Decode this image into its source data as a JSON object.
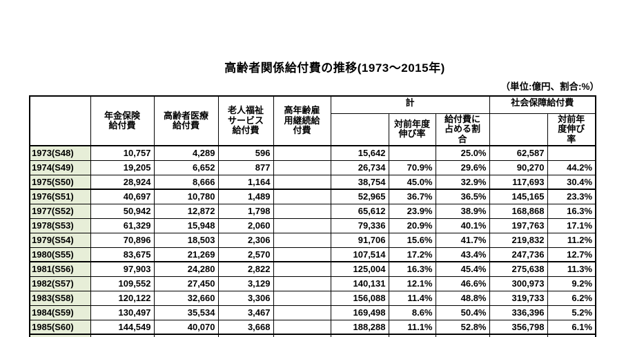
{
  "title": "高齢者関係給付費の推移(1973～2015年)",
  "unit_note": "（単位:億円、割合:%）",
  "colors": {
    "year_cell_bg": "#e7eed8",
    "border": "#000000",
    "text": "#000000"
  },
  "table": {
    "headers": {
      "year_col": "",
      "cols": [
        "年金保険\n給付費",
        "高齢者医療\n給付費",
        "老人福祉\nサービス\n給付費",
        "高年齢雇\n用継続給\n付費"
      ],
      "group_total": "計",
      "group_social": "社会保障給付費",
      "total_yoy": "対前年度\n伸び率",
      "total_share": "給付費に\n占める割\n合",
      "social_yoy": "対前年\n度伸び\n率"
    },
    "rows": [
      [
        "1973(S48)",
        "10,757",
        "4,289",
        "596",
        "",
        "15,642",
        "",
        "25.0%",
        "62,587",
        ""
      ],
      [
        "1974(S49)",
        "19,205",
        "6,652",
        "877",
        "",
        "26,734",
        "70.9%",
        "29.6%",
        "90,270",
        "44.2%"
      ],
      [
        "1975(S50)",
        "28,924",
        "8,666",
        "1,164",
        "",
        "38,754",
        "45.0%",
        "32.9%",
        "117,693",
        "30.4%"
      ],
      [
        "1976(S51)",
        "40,697",
        "10,780",
        "1,489",
        "",
        "52,965",
        "36.7%",
        "36.5%",
        "145,165",
        "23.3%"
      ],
      [
        "1977(S52)",
        "50,942",
        "12,872",
        "1,798",
        "",
        "65,612",
        "23.9%",
        "38.9%",
        "168,868",
        "16.3%"
      ],
      [
        "1978(S53)",
        "61,329",
        "15,948",
        "2,060",
        "",
        "79,336",
        "20.9%",
        "40.1%",
        "197,763",
        "17.1%"
      ],
      [
        "1979(S54)",
        "70,896",
        "18,503",
        "2,306",
        "",
        "91,706",
        "15.6%",
        "41.7%",
        "219,832",
        "11.2%"
      ],
      [
        "1980(S55)",
        "83,675",
        "21,269",
        "2,570",
        "",
        "107,514",
        "17.2%",
        "43.4%",
        "247,736",
        "12.7%"
      ],
      [
        "1981(S56)",
        "97,903",
        "24,280",
        "2,822",
        "",
        "125,004",
        "16.3%",
        "45.4%",
        "275,638",
        "11.3%"
      ],
      [
        "1982(S57)",
        "109,552",
        "27,450",
        "3,129",
        "",
        "140,131",
        "12.1%",
        "46.6%",
        "300,973",
        "9.2%"
      ],
      [
        "1983(S58)",
        "120,122",
        "32,660",
        "3,306",
        "",
        "156,088",
        "11.4%",
        "48.8%",
        "319,733",
        "6.2%"
      ],
      [
        "1984(S59)",
        "130,497",
        "35,534",
        "3,467",
        "",
        "169,498",
        "8.6%",
        "50.4%",
        "336,396",
        "5.2%"
      ],
      [
        "1985(S60)",
        "144,549",
        "40,070",
        "3,668",
        "",
        "188,288",
        "11.1%",
        "52.8%",
        "356,798",
        "6.1%"
      ]
    ]
  }
}
